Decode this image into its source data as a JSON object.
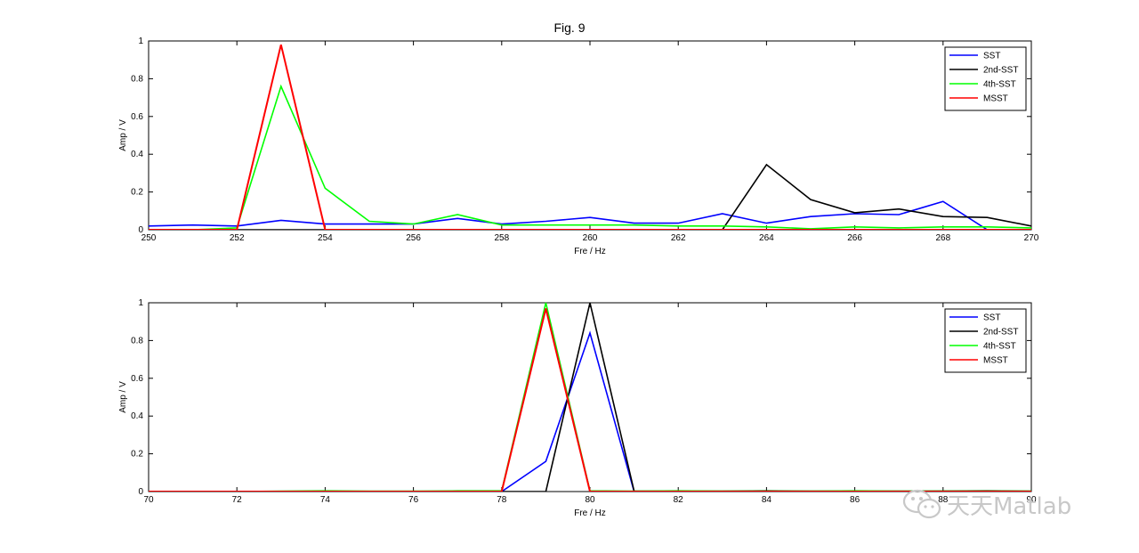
{
  "figure_title": "Fig. 9",
  "watermark": {
    "text": "天天Matlab",
    "icon": "wechat-icon"
  },
  "chart_data": [
    {
      "type": "line",
      "title": "Fig. 9",
      "xlabel": "Fre / Hz",
      "ylabel": "Amp / V",
      "xlim": [
        250,
        270
      ],
      "ylim": [
        0,
        1
      ],
      "xticks": [
        250,
        252,
        254,
        256,
        258,
        260,
        262,
        264,
        266,
        268,
        270
      ],
      "yticks": [
        0,
        0.2,
        0.4,
        0.6,
        0.8,
        1
      ],
      "grid": false,
      "legend_position": "top-right",
      "series": [
        {
          "name": "SST",
          "color": "#0000ff",
          "x": [
            250,
            251,
            252,
            253,
            254,
            255,
            256,
            257,
            258,
            259,
            260,
            261,
            262,
            263,
            264,
            265,
            266,
            267,
            268,
            269
          ],
          "y": [
            0.02,
            0.025,
            0.02,
            0.05,
            0.03,
            0.03,
            0.03,
            0.06,
            0.03,
            0.045,
            0.065,
            0.035,
            0.035,
            0.085,
            0.035,
            0.07,
            0.085,
            0.08,
            0.15,
            0.0
          ]
        },
        {
          "name": "2nd-SST",
          "color": "#000000",
          "x": [
            250,
            251,
            252,
            253,
            254,
            255,
            256,
            257,
            258,
            259,
            260,
            261,
            262,
            263,
            264,
            265,
            266,
            267,
            268,
            269,
            270
          ],
          "y": [
            0,
            0,
            0,
            0,
            0,
            0,
            0,
            0,
            0,
            0,
            0,
            0,
            0,
            0,
            0.345,
            0.16,
            0.09,
            0.11,
            0.07,
            0.065,
            0.02
          ]
        },
        {
          "name": "4th-SST",
          "color": "#00ff00",
          "x": [
            250,
            251,
            252,
            253,
            254,
            255,
            256,
            257,
            258,
            259,
            260,
            261,
            262,
            263,
            264,
            265,
            266,
            267,
            268,
            269,
            270
          ],
          "y": [
            0,
            0,
            0.01,
            0.76,
            0.22,
            0.045,
            0.03,
            0.08,
            0.025,
            0.025,
            0.025,
            0.025,
            0.02,
            0.02,
            0.015,
            0.005,
            0.015,
            0.01,
            0.015,
            0.015,
            0.01
          ]
        },
        {
          "name": "MSST",
          "color": "#ff0000",
          "x": [
            250,
            251,
            252,
            253,
            254,
            255,
            256,
            257,
            258,
            259,
            260,
            261,
            262,
            263,
            264,
            265,
            266,
            267,
            268,
            269,
            270
          ],
          "y": [
            0,
            0,
            0,
            0.98,
            0,
            0,
            0,
            0,
            0,
            0,
            0,
            0,
            0,
            0,
            0,
            0,
            0,
            0,
            0,
            0,
            0
          ]
        }
      ]
    },
    {
      "type": "line",
      "title": "",
      "xlabel": "Fre / Hz",
      "ylabel": "Amp / V",
      "xlim": [
        70,
        90
      ],
      "ylim": [
        0,
        1
      ],
      "xticks": [
        70,
        72,
        74,
        76,
        78,
        80,
        82,
        84,
        86,
        88,
        90
      ],
      "yticks": [
        0,
        0.2,
        0.4,
        0.6,
        0.8,
        1
      ],
      "grid": false,
      "legend_position": "top-right",
      "series": [
        {
          "name": "SST",
          "color": "#0000ff",
          "x": [
            70,
            71,
            72,
            73,
            74,
            75,
            76,
            77,
            78,
            79,
            80,
            81,
            82,
            83,
            84,
            85,
            86,
            87,
            88,
            89,
            90
          ],
          "y": [
            0,
            0,
            0,
            0,
            0,
            0,
            0,
            0,
            0,
            0.16,
            0.84,
            0,
            0,
            0,
            0,
            0,
            0,
            0,
            0,
            0,
            0
          ]
        },
        {
          "name": "2nd-SST",
          "color": "#000000",
          "x": [
            70,
            71,
            72,
            73,
            74,
            75,
            76,
            77,
            78,
            79,
            80,
            81,
            82,
            83,
            84,
            85,
            86,
            87,
            88,
            89,
            90
          ],
          "y": [
            0,
            0,
            0,
            0,
            0,
            0,
            0,
            0,
            0,
            0,
            1.0,
            0.003,
            0.002,
            0.002,
            0.004,
            0.002,
            0.002,
            0.002,
            0.003,
            0.004,
            0.002
          ]
        },
        {
          "name": "4th-SST",
          "color": "#00ff00",
          "x": [
            70,
            71,
            72,
            73,
            74,
            75,
            76,
            77,
            78,
            79,
            80,
            81,
            82,
            83,
            84,
            85,
            86,
            87,
            88,
            89,
            90
          ],
          "y": [
            0,
            0,
            0,
            0.002,
            0.004,
            0.002,
            0.002,
            0.004,
            0.004,
            1.0,
            0.004,
            0.002,
            0.004,
            0.002,
            0.002,
            0.002,
            0.004,
            0.002,
            0.002,
            0.002,
            0.002
          ]
        },
        {
          "name": "MSST",
          "color": "#ff0000",
          "x": [
            70,
            71,
            72,
            73,
            74,
            75,
            76,
            77,
            78,
            79,
            80,
            81,
            82,
            83,
            84,
            85,
            86,
            87,
            88,
            89,
            90
          ],
          "y": [
            0,
            0,
            0,
            0,
            0,
            0,
            0,
            0,
            0,
            0.97,
            0,
            0,
            0,
            0,
            0,
            0,
            0,
            0,
            0,
            0,
            0
          ]
        }
      ]
    }
  ]
}
